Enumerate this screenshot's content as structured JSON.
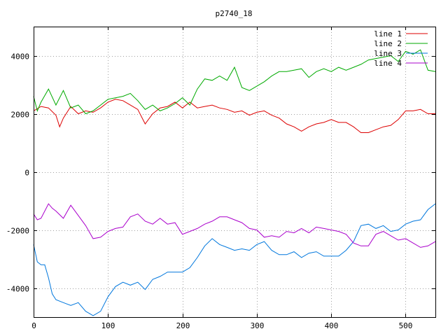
{
  "chart_data": {
    "type": "line",
    "title": "p2740_18",
    "xlabel": "",
    "ylabel": "",
    "xlim": [
      0,
      540
    ],
    "ylim": [
      -5000,
      5000
    ],
    "xticks": [
      0,
      100,
      200,
      300,
      400,
      500
    ],
    "yticks": [
      -4000,
      -2000,
      0,
      2000,
      4000
    ],
    "xtick_labels": [
      "0",
      "100",
      "200",
      "300",
      "400",
      "500"
    ],
    "ytick_labels": [
      "-4000",
      "-2000",
      "0",
      "2000",
      "4000"
    ],
    "grid": true,
    "legend_position": "top-right",
    "series": [
      {
        "name": "line 1",
        "color": "#dd0000",
        "points": [
          [
            0,
            2100
          ],
          [
            10,
            2250
          ],
          [
            20,
            2200
          ],
          [
            30,
            1950
          ],
          [
            35,
            1550
          ],
          [
            40,
            1850
          ],
          [
            50,
            2250
          ],
          [
            60,
            2000
          ],
          [
            70,
            2100
          ],
          [
            80,
            2050
          ],
          [
            90,
            2200
          ],
          [
            100,
            2400
          ],
          [
            110,
            2500
          ],
          [
            120,
            2450
          ],
          [
            130,
            2300
          ],
          [
            140,
            2150
          ],
          [
            150,
            1650
          ],
          [
            160,
            2000
          ],
          [
            170,
            2200
          ],
          [
            180,
            2250
          ],
          [
            190,
            2400
          ],
          [
            200,
            2200
          ],
          [
            210,
            2400
          ],
          [
            220,
            2200
          ],
          [
            230,
            2250
          ],
          [
            240,
            2300
          ],
          [
            250,
            2200
          ],
          [
            260,
            2150
          ],
          [
            270,
            2050
          ],
          [
            280,
            2100
          ],
          [
            290,
            1950
          ],
          [
            300,
            2050
          ],
          [
            310,
            2100
          ],
          [
            320,
            1950
          ],
          [
            330,
            1850
          ],
          [
            340,
            1650
          ],
          [
            350,
            1550
          ],
          [
            360,
            1400
          ],
          [
            370,
            1550
          ],
          [
            380,
            1650
          ],
          [
            390,
            1700
          ],
          [
            400,
            1800
          ],
          [
            410,
            1700
          ],
          [
            420,
            1700
          ],
          [
            430,
            1550
          ],
          [
            440,
            1350
          ],
          [
            450,
            1350
          ],
          [
            460,
            1450
          ],
          [
            470,
            1550
          ],
          [
            480,
            1600
          ],
          [
            490,
            1800
          ],
          [
            500,
            2100
          ],
          [
            510,
            2100
          ],
          [
            520,
            2150
          ],
          [
            530,
            2000
          ],
          [
            540,
            2000
          ]
        ]
      },
      {
        "name": "line 2",
        "color": "#00aa00",
        "points": [
          [
            0,
            2600
          ],
          [
            5,
            2100
          ],
          [
            10,
            2400
          ],
          [
            20,
            2850
          ],
          [
            30,
            2300
          ],
          [
            40,
            2800
          ],
          [
            50,
            2200
          ],
          [
            60,
            2300
          ],
          [
            70,
            2000
          ],
          [
            80,
            2100
          ],
          [
            90,
            2300
          ],
          [
            100,
            2500
          ],
          [
            110,
            2550
          ],
          [
            120,
            2600
          ],
          [
            130,
            2700
          ],
          [
            140,
            2450
          ],
          [
            150,
            2150
          ],
          [
            160,
            2300
          ],
          [
            170,
            2100
          ],
          [
            180,
            2200
          ],
          [
            190,
            2350
          ],
          [
            200,
            2550
          ],
          [
            210,
            2300
          ],
          [
            220,
            2850
          ],
          [
            230,
            3200
          ],
          [
            240,
            3150
          ],
          [
            250,
            3300
          ],
          [
            260,
            3150
          ],
          [
            270,
            3600
          ],
          [
            280,
            2900
          ],
          [
            290,
            2800
          ],
          [
            300,
            2950
          ],
          [
            310,
            3100
          ],
          [
            320,
            3300
          ],
          [
            330,
            3450
          ],
          [
            340,
            3450
          ],
          [
            350,
            3500
          ],
          [
            360,
            3550
          ],
          [
            370,
            3250
          ],
          [
            380,
            3450
          ],
          [
            390,
            3550
          ],
          [
            400,
            3450
          ],
          [
            410,
            3600
          ],
          [
            420,
            3500
          ],
          [
            430,
            3600
          ],
          [
            440,
            3700
          ],
          [
            450,
            3850
          ],
          [
            460,
            3900
          ],
          [
            470,
            3950
          ],
          [
            480,
            4000
          ],
          [
            490,
            3800
          ],
          [
            500,
            4150
          ],
          [
            510,
            4050
          ],
          [
            520,
            4200
          ],
          [
            530,
            3500
          ],
          [
            540,
            3450
          ]
        ]
      },
      {
        "name": "line 3",
        "color": "#0077dd",
        "points": [
          [
            0,
            -2500
          ],
          [
            5,
            -3100
          ],
          [
            10,
            -3200
          ],
          [
            15,
            -3200
          ],
          [
            20,
            -3650
          ],
          [
            25,
            -4200
          ],
          [
            30,
            -4400
          ],
          [
            40,
            -4500
          ],
          [
            50,
            -4600
          ],
          [
            60,
            -4500
          ],
          [
            70,
            -4800
          ],
          [
            80,
            -4950
          ],
          [
            90,
            -4800
          ],
          [
            100,
            -4300
          ],
          [
            110,
            -3950
          ],
          [
            120,
            -3800
          ],
          [
            130,
            -3900
          ],
          [
            140,
            -3800
          ],
          [
            150,
            -4050
          ],
          [
            160,
            -3700
          ],
          [
            170,
            -3600
          ],
          [
            180,
            -3450
          ],
          [
            190,
            -3450
          ],
          [
            200,
            -3450
          ],
          [
            210,
            -3300
          ],
          [
            220,
            -2950
          ],
          [
            230,
            -2550
          ],
          [
            240,
            -2300
          ],
          [
            250,
            -2500
          ],
          [
            260,
            -2600
          ],
          [
            270,
            -2700
          ],
          [
            280,
            -2650
          ],
          [
            290,
            -2700
          ],
          [
            300,
            -2500
          ],
          [
            310,
            -2400
          ],
          [
            320,
            -2700
          ],
          [
            330,
            -2850
          ],
          [
            340,
            -2850
          ],
          [
            350,
            -2750
          ],
          [
            360,
            -2950
          ],
          [
            370,
            -2800
          ],
          [
            380,
            -2750
          ],
          [
            390,
            -2900
          ],
          [
            400,
            -2900
          ],
          [
            410,
            -2900
          ],
          [
            420,
            -2700
          ],
          [
            430,
            -2400
          ],
          [
            440,
            -1850
          ],
          [
            450,
            -1800
          ],
          [
            460,
            -1950
          ],
          [
            470,
            -1850
          ],
          [
            480,
            -2050
          ],
          [
            490,
            -2000
          ],
          [
            500,
            -1800
          ],
          [
            510,
            -1700
          ],
          [
            520,
            -1650
          ],
          [
            530,
            -1300
          ],
          [
            540,
            -1100
          ]
        ]
      },
      {
        "name": "line 4",
        "color": "#aa00cc",
        "points": [
          [
            0,
            -1450
          ],
          [
            5,
            -1650
          ],
          [
            10,
            -1600
          ],
          [
            20,
            -1100
          ],
          [
            25,
            -1250
          ],
          [
            30,
            -1350
          ],
          [
            40,
            -1600
          ],
          [
            50,
            -1150
          ],
          [
            60,
            -1500
          ],
          [
            70,
            -1850
          ],
          [
            80,
            -2300
          ],
          [
            90,
            -2250
          ],
          [
            100,
            -2050
          ],
          [
            110,
            -1950
          ],
          [
            120,
            -1900
          ],
          [
            130,
            -1550
          ],
          [
            140,
            -1450
          ],
          [
            150,
            -1700
          ],
          [
            160,
            -1800
          ],
          [
            170,
            -1600
          ],
          [
            180,
            -1800
          ],
          [
            190,
            -1750
          ],
          [
            200,
            -2150
          ],
          [
            210,
            -2050
          ],
          [
            220,
            -1950
          ],
          [
            230,
            -1800
          ],
          [
            240,
            -1700
          ],
          [
            250,
            -1550
          ],
          [
            260,
            -1550
          ],
          [
            270,
            -1650
          ],
          [
            280,
            -1750
          ],
          [
            290,
            -1950
          ],
          [
            300,
            -2000
          ],
          [
            310,
            -2250
          ],
          [
            320,
            -2200
          ],
          [
            330,
            -2250
          ],
          [
            340,
            -2050
          ],
          [
            350,
            -2100
          ],
          [
            360,
            -1950
          ],
          [
            370,
            -2100
          ],
          [
            380,
            -1900
          ],
          [
            390,
            -1950
          ],
          [
            400,
            -2000
          ],
          [
            410,
            -2050
          ],
          [
            420,
            -2150
          ],
          [
            430,
            -2450
          ],
          [
            440,
            -2550
          ],
          [
            450,
            -2550
          ],
          [
            460,
            -2150
          ],
          [
            470,
            -2050
          ],
          [
            480,
            -2200
          ],
          [
            490,
            -2350
          ],
          [
            500,
            -2300
          ],
          [
            510,
            -2450
          ],
          [
            520,
            -2600
          ],
          [
            530,
            -2550
          ],
          [
            540,
            -2400
          ]
        ]
      }
    ]
  }
}
